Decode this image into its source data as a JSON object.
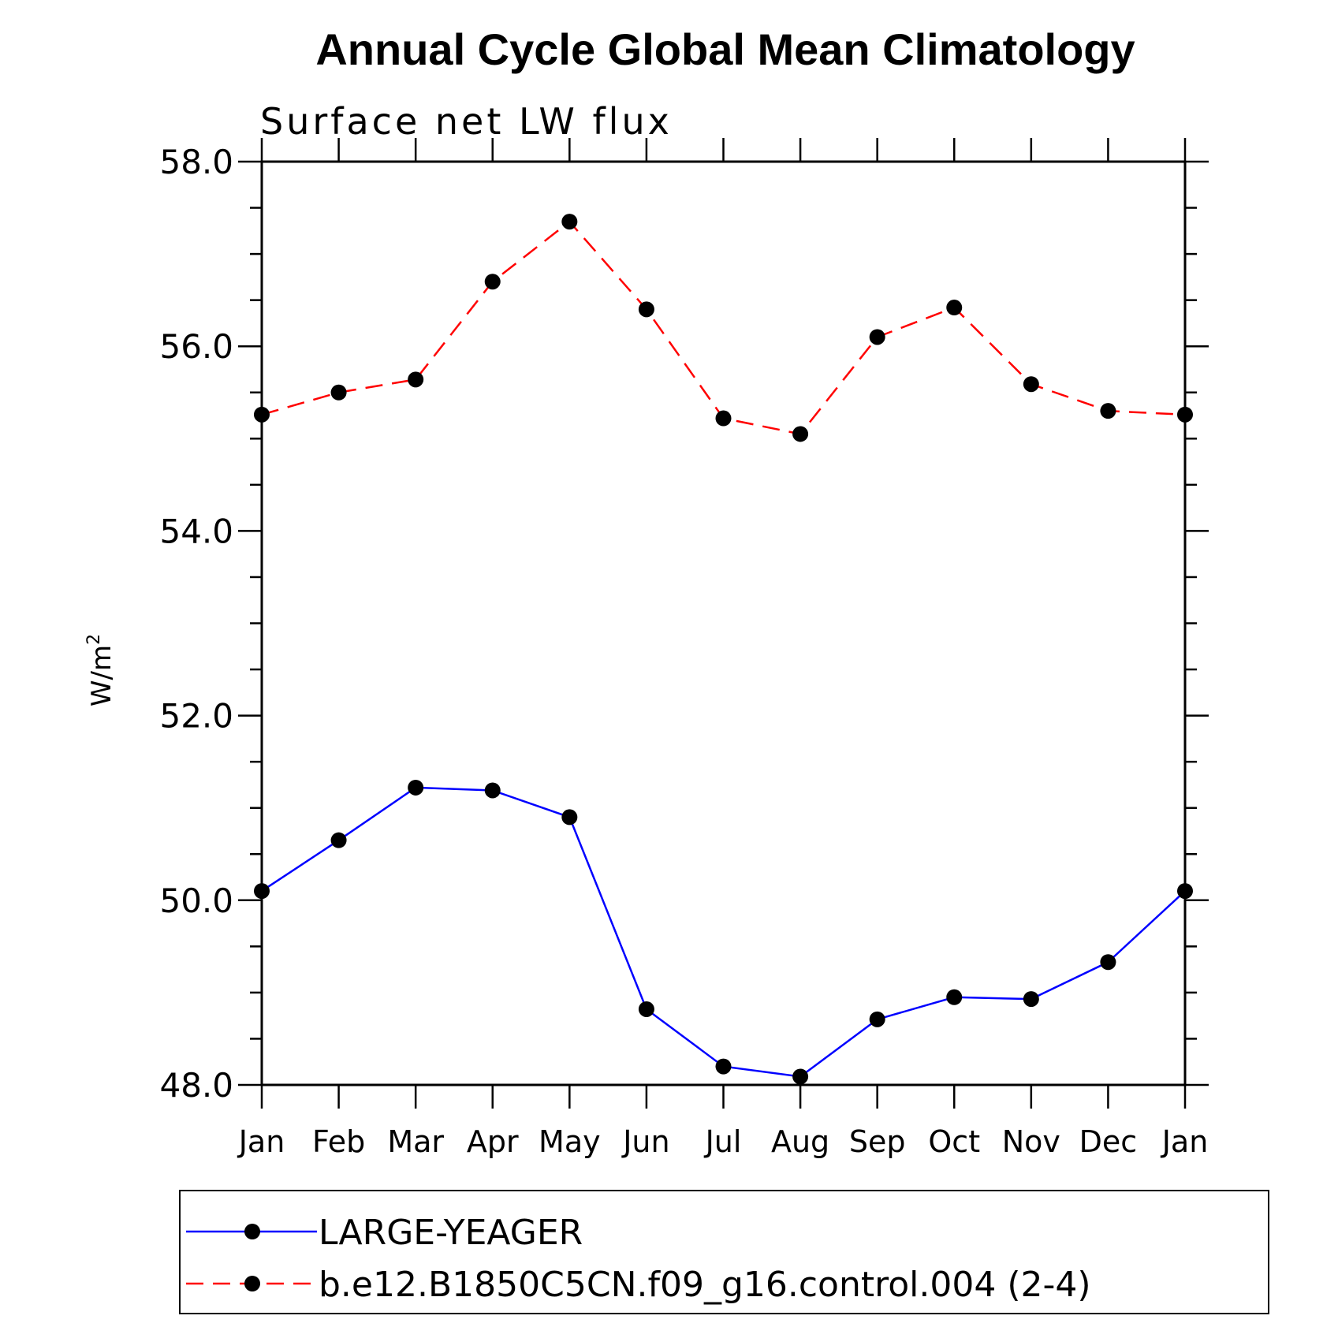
{
  "chart_data": {
    "type": "line",
    "title": "Annual Cycle Global Mean Climatology",
    "subtitle": "Surface net LW flux",
    "ylabel": "W/m",
    "ylabel_superscript": "2",
    "xlabel": "",
    "ylim": [
      48.0,
      58.0
    ],
    "yticks": [
      "48.0",
      "50.0",
      "52.0",
      "54.0",
      "56.0",
      "58.0"
    ],
    "categories": [
      "Jan",
      "Feb",
      "Mar",
      "Apr",
      "May",
      "Jun",
      "Jul",
      "Aug",
      "Sep",
      "Oct",
      "Nov",
      "Dec",
      "Jan"
    ],
    "series": [
      {
        "name": "LARGE-YEAGER",
        "color": "#0000ff",
        "style": "solid",
        "values": [
          50.1,
          50.65,
          51.22,
          51.19,
          50.9,
          48.82,
          48.2,
          48.09,
          48.71,
          48.95,
          48.93,
          49.33,
          50.1
        ]
      },
      {
        "name": "b.e12.B1850C5CN.f09_g16.control.004 (2-4)",
        "color": "#ff0000",
        "style": "dashed",
        "values": [
          55.26,
          55.5,
          55.64,
          56.7,
          57.35,
          56.4,
          55.22,
          55.05,
          56.1,
          56.42,
          55.59,
          55.3,
          55.26
        ]
      }
    ],
    "legend_position": "bottom"
  }
}
